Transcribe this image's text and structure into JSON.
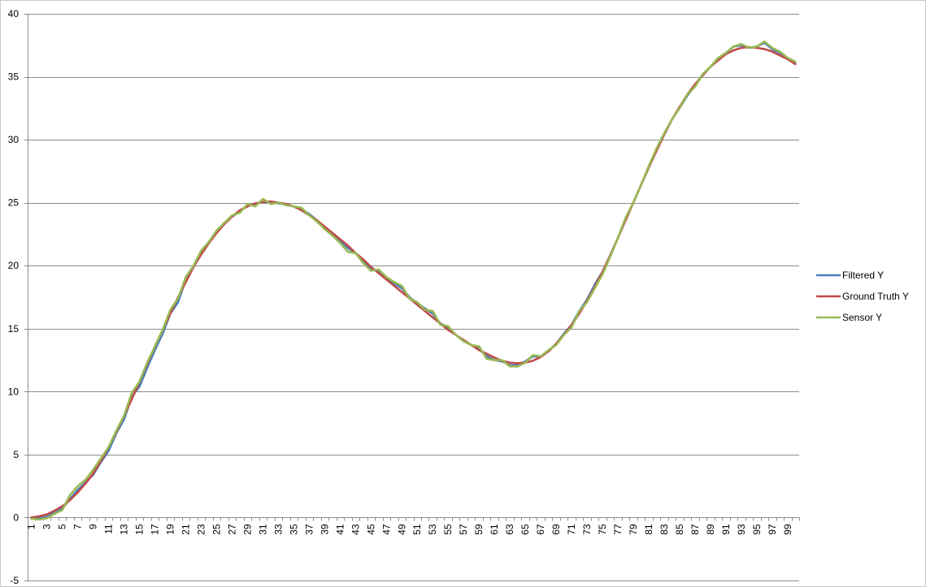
{
  "chart_data": {
    "type": "line",
    "title": "",
    "xlabel": "",
    "ylabel": "",
    "grid": true,
    "legend_position": "right",
    "x": [
      1,
      2,
      3,
      4,
      5,
      6,
      7,
      8,
      9,
      10,
      11,
      12,
      13,
      14,
      15,
      16,
      17,
      18,
      19,
      20,
      21,
      22,
      23,
      24,
      25,
      26,
      27,
      28,
      29,
      30,
      31,
      32,
      33,
      34,
      35,
      36,
      37,
      38,
      39,
      40,
      41,
      42,
      43,
      44,
      45,
      46,
      47,
      48,
      49,
      50,
      51,
      52,
      53,
      54,
      55,
      56,
      57,
      58,
      59,
      60,
      61,
      62,
      63,
      64,
      65,
      66,
      67,
      68,
      69,
      70,
      71,
      72,
      73,
      74,
      75,
      76,
      77,
      78,
      79,
      80,
      81,
      82,
      83,
      84,
      85,
      86,
      87,
      88,
      89,
      90,
      91,
      92,
      93,
      94,
      95,
      96,
      97,
      98,
      99,
      100
    ],
    "x_tick_labels": [
      "1",
      "3",
      "5",
      "7",
      "9",
      "11",
      "13",
      "15",
      "17",
      "19",
      "21",
      "23",
      "25",
      "27",
      "29",
      "31",
      "33",
      "35",
      "37",
      "39",
      "41",
      "43",
      "45",
      "47",
      "49",
      "51",
      "53",
      "55",
      "57",
      "59",
      "61",
      "63",
      "65",
      "67",
      "69",
      "71",
      "73",
      "75",
      "77",
      "79",
      "81",
      "83",
      "85",
      "87",
      "89",
      "91",
      "93",
      "95",
      "97",
      "99"
    ],
    "y_ticks": [
      -5,
      0,
      5,
      10,
      15,
      20,
      25,
      30,
      35,
      40
    ],
    "ylim": [
      -5,
      40
    ],
    "series": [
      {
        "name": "Filtered Y",
        "color": "#4a7ebb",
        "values": [
          0,
          -0.05,
          0.05,
          0.4,
          0.7,
          1.5,
          2.2,
          2.8,
          3.4,
          4.4,
          5.3,
          6.7,
          7.8,
          9.6,
          10.4,
          11.9,
          13.3,
          14.6,
          16.2,
          17.1,
          18.9,
          19.9,
          21.0,
          21.8,
          22.7,
          23.4,
          23.9,
          24.3,
          24.8,
          24.9,
          25.05,
          25.0,
          24.95,
          24.85,
          24.7,
          24.5,
          24.1,
          23.6,
          23.0,
          22.5,
          22.0,
          21.4,
          21.0,
          20.3,
          19.8,
          19.5,
          19.0,
          18.6,
          18.2,
          17.5,
          17.0,
          16.6,
          16.2,
          15.4,
          15.1,
          14.5,
          14.0,
          13.7,
          13.4,
          12.8,
          12.5,
          12.4,
          12.1,
          12.1,
          12.4,
          12.8,
          12.8,
          13.2,
          13.8,
          14.6,
          15.3,
          16.4,
          17.3,
          18.5,
          19.5,
          20.8,
          22.2,
          23.7,
          25.0,
          26.4,
          27.8,
          29.2,
          30.4,
          31.6,
          32.5,
          33.5,
          34.3,
          35.2,
          35.8,
          36.4,
          36.9,
          37.4,
          37.5,
          37.3,
          37.4,
          37.7,
          37.2,
          36.9,
          36.4,
          36.1
        ]
      },
      {
        "name": "Ground Truth Y",
        "color": "#be4b48",
        "values": [
          0,
          0.1,
          0.25,
          0.55,
          0.9,
          1.4,
          2.0,
          2.7,
          3.5,
          4.5,
          5.6,
          6.8,
          8.1,
          9.4,
          10.8,
          12.2,
          13.6,
          14.9,
          16.2,
          17.5,
          18.7,
          19.9,
          20.9,
          21.8,
          22.6,
          23.3,
          23.9,
          24.4,
          24.7,
          24.95,
          25.05,
          25.1,
          25.0,
          24.9,
          24.7,
          24.4,
          24.0,
          23.6,
          23.1,
          22.6,
          22.1,
          21.6,
          21.0,
          20.5,
          19.9,
          19.4,
          18.9,
          18.4,
          17.9,
          17.4,
          16.9,
          16.4,
          15.9,
          15.4,
          14.9,
          14.5,
          14.1,
          13.7,
          13.3,
          13.0,
          12.7,
          12.45,
          12.3,
          12.25,
          12.3,
          12.45,
          12.75,
          13.2,
          13.8,
          14.5,
          15.3,
          16.2,
          17.2,
          18.3,
          19.5,
          20.8,
          22.2,
          23.6,
          25.0,
          26.4,
          27.8,
          29.1,
          30.4,
          31.6,
          32.6,
          33.6,
          34.4,
          35.1,
          35.8,
          36.3,
          36.8,
          37.1,
          37.3,
          37.35,
          37.3,
          37.2,
          37.0,
          36.7,
          36.4,
          36.0
        ]
      },
      {
        "name": "Sensor Y",
        "color": "#98b954",
        "values": [
          -0.1,
          -0.15,
          -0.05,
          0.3,
          0.6,
          1.8,
          2.5,
          3.0,
          3.8,
          4.7,
          5.6,
          6.9,
          8.1,
          9.9,
          10.8,
          12.3,
          13.6,
          14.9,
          16.5,
          17.4,
          19.1,
          20.0,
          21.2,
          21.9,
          22.8,
          23.4,
          24.0,
          24.2,
          24.9,
          24.7,
          25.3,
          24.9,
          25.0,
          24.8,
          24.7,
          24.6,
          24.0,
          23.5,
          22.9,
          22.4,
          21.8,
          21.1,
          21.0,
          20.2,
          19.6,
          19.7,
          19.1,
          18.7,
          18.4,
          17.4,
          17.1,
          16.5,
          16.4,
          15.3,
          15.2,
          14.5,
          14.0,
          13.7,
          13.6,
          12.6,
          12.5,
          12.5,
          12.0,
          12.0,
          12.3,
          12.9,
          12.8,
          13.3,
          13.7,
          14.5,
          15.1,
          16.4,
          17.1,
          18.2,
          19.3,
          20.7,
          22.2,
          23.8,
          25.0,
          26.4,
          27.9,
          29.3,
          30.5,
          31.6,
          32.5,
          33.6,
          34.2,
          35.2,
          35.8,
          36.5,
          36.9,
          37.4,
          37.6,
          37.3,
          37.4,
          37.8,
          37.3,
          37.0,
          36.5,
          36.2
        ]
      }
    ]
  }
}
